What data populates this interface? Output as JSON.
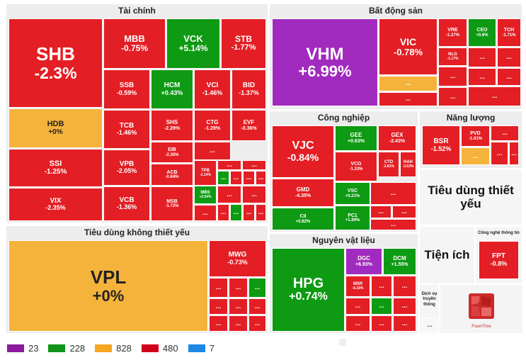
{
  "chart_data": {
    "type": "treemap",
    "title": "",
    "sectors": [
      {
        "name": "Tài chính",
        "stocks": [
          {
            "symbol": "SHB",
            "change": "-2.3%",
            "color": "red"
          },
          {
            "symbol": "MBB",
            "change": "-0.75%",
            "color": "red"
          },
          {
            "symbol": "VCK",
            "change": "+5.14%",
            "color": "green"
          },
          {
            "symbol": "STB",
            "change": "-1.77%",
            "color": "red"
          },
          {
            "symbol": "HDB",
            "change": "+0%",
            "color": "yellow"
          },
          {
            "symbol": "SSB",
            "change": "-0.59%",
            "color": "red"
          },
          {
            "symbol": "HCM",
            "change": "+0.43%",
            "color": "green"
          },
          {
            "symbol": "VCI",
            "change": "-1.46%",
            "color": "red"
          },
          {
            "symbol": "BID",
            "change": "-1.37%",
            "color": "red"
          },
          {
            "symbol": "SSI",
            "change": "-1.25%",
            "color": "red"
          },
          {
            "symbol": "TCB",
            "change": "-1.46%",
            "color": "red"
          },
          {
            "symbol": "SHS",
            "change": "-2.29%",
            "color": "red"
          },
          {
            "symbol": "CTG",
            "change": "-1.29%",
            "color": "red"
          },
          {
            "symbol": "EVF",
            "change": "-0.36%",
            "color": "red"
          },
          {
            "symbol": "EIB",
            "change": "-2.35%",
            "color": "red"
          },
          {
            "symbol": "VPB",
            "change": "-2.05%",
            "color": "red"
          },
          {
            "symbol": "ACB",
            "change": "-0.84%",
            "color": "red"
          },
          {
            "symbol": "TPB",
            "change": "-2.14%",
            "color": "red"
          },
          {
            "symbol": "VIX",
            "change": "-2.35%",
            "color": "red"
          },
          {
            "symbol": "VCB",
            "change": "-1.36%",
            "color": "red"
          },
          {
            "symbol": "MSB",
            "change": "-1.72%",
            "color": "red"
          },
          {
            "symbol": "MBS",
            "change": "+2.54%",
            "color": "green"
          }
        ]
      },
      {
        "name": "Bất động sản",
        "stocks": [
          {
            "symbol": "VHM",
            "change": "+6.99%",
            "color": "purple"
          },
          {
            "symbol": "VIC",
            "change": "-0.78%",
            "color": "red"
          },
          {
            "symbol": "VRE",
            "change": "-1.27%",
            "color": "red"
          },
          {
            "symbol": "CEO",
            "change": "+0.6%",
            "color": "green"
          },
          {
            "symbol": "TCH",
            "change": "-1.71%",
            "color": "red"
          },
          {
            "symbol": "NLG",
            "change": "-1.17%",
            "color": "red"
          }
        ]
      },
      {
        "name": "Công nghiệp",
        "stocks": [
          {
            "symbol": "VJC",
            "change": "-0.84%",
            "color": "red"
          },
          {
            "symbol": "GEE",
            "change": "+0.63%",
            "color": "green"
          },
          {
            "symbol": "GEX",
            "change": "-2.43%",
            "color": "red"
          },
          {
            "symbol": "VCG",
            "change": "-1.33%",
            "color": "red"
          },
          {
            "symbol": "CTD",
            "change": "-2.81%",
            "color": "red"
          },
          {
            "symbol": "HAH",
            "change": "-3.53%",
            "color": "red"
          },
          {
            "symbol": "GMD",
            "change": "-4.35%",
            "color": "red"
          },
          {
            "symbol": "VSC",
            "change": "+0.21%",
            "color": "green"
          },
          {
            "symbol": "CII",
            "change": "+0.82%",
            "color": "green"
          },
          {
            "symbol": "PC1",
            "change": "+1.89%",
            "color": "green"
          }
        ]
      },
      {
        "name": "Năng lượng",
        "stocks": [
          {
            "symbol": "BSR",
            "change": "-1.52%",
            "color": "red"
          },
          {
            "symbol": "PVD",
            "change": "-1.01%",
            "color": "red"
          }
        ]
      },
      {
        "name": "Tiêu dùng không thiết yếu",
        "stocks": [
          {
            "symbol": "VPL",
            "change": "+0%",
            "color": "yellow"
          },
          {
            "symbol": "MWG",
            "change": "-0.73%",
            "color": "red"
          }
        ]
      },
      {
        "name": "Nguyên vật liệu",
        "stocks": [
          {
            "symbol": "HPG",
            "change": "+0.74%",
            "color": "green"
          },
          {
            "symbol": "DGC",
            "change": "+6.93%",
            "color": "purple"
          },
          {
            "symbol": "DCM",
            "change": "+1.55%",
            "color": "green"
          },
          {
            "symbol": "MSR",
            "change": "-6.16%",
            "color": "red"
          }
        ]
      },
      {
        "name": "Tiêu dùng thiết yếu",
        "stocks": []
      },
      {
        "name": "Tiện ích",
        "stocks": []
      },
      {
        "name": "Công nghệ thông tin",
        "stocks": [
          {
            "symbol": "FPT",
            "change": "-0.8%",
            "color": "red"
          }
        ]
      },
      {
        "name": "Dịch vụ truyền thông",
        "stocks": []
      }
    ],
    "more_label": "...",
    "legend": [
      {
        "label": "23",
        "color": "#8b1a9e"
      },
      {
        "label": "228",
        "color": "#10951a"
      },
      {
        "label": "828",
        "color": "#f6a623"
      },
      {
        "label": "480",
        "color": "#d0021b"
      },
      {
        "label": "7",
        "color": "#1e88e5"
      }
    ],
    "colors": {
      "red": "#e31e24",
      "green": "#0e9a12",
      "yellow": "#f5b33b",
      "purple": "#a12bbe"
    },
    "logo_text": "FoamTree"
  }
}
